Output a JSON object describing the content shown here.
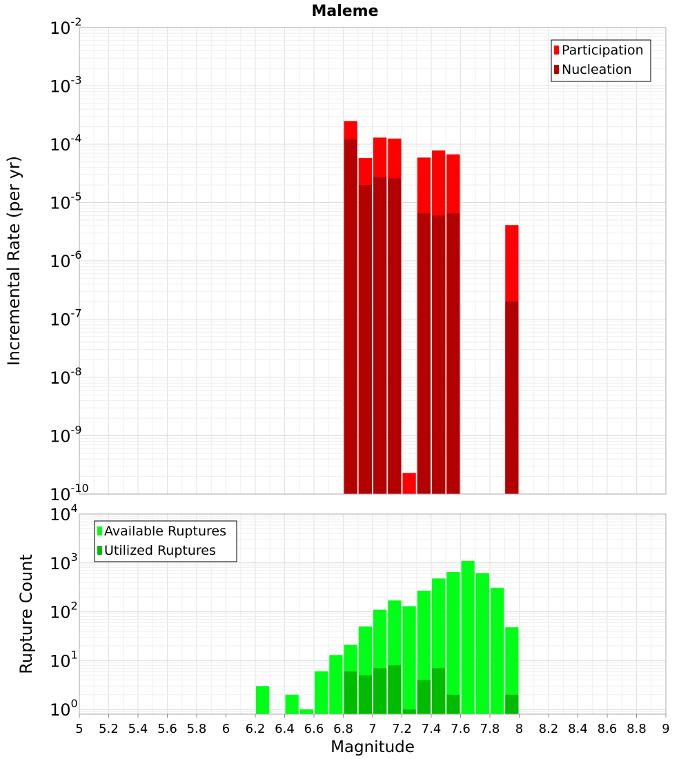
{
  "chart_data": [
    {
      "type": "bar",
      "scale": "log",
      "title": "Maleme",
      "xlabel": "Magnitude",
      "ylabel": "Incremental Rate (per yr)",
      "xlim": [
        5,
        9
      ],
      "ylim": [
        1e-10,
        0.01
      ],
      "bin_width": 0.1,
      "y_ticks": [
        {
          "base": "10",
          "exp": "-10",
          "value": 1e-10
        },
        {
          "base": "10",
          "exp": "-9",
          "value": 1e-09
        },
        {
          "base": "10",
          "exp": "-8",
          "value": 1e-08
        },
        {
          "base": "10",
          "exp": "-7",
          "value": 1e-07
        },
        {
          "base": "10",
          "exp": "-6",
          "value": 1e-06
        },
        {
          "base": "10",
          "exp": "-5",
          "value": 1e-05
        },
        {
          "base": "10",
          "exp": "-4",
          "value": 0.0001
        },
        {
          "base": "10",
          "exp": "-3",
          "value": 0.001
        },
        {
          "base": "10",
          "exp": "-2",
          "value": 0.01
        }
      ],
      "legend": {
        "position": "top-right"
      },
      "series": [
        {
          "name": "Participation",
          "color": "#ff0000",
          "x": [
            6.85,
            6.95,
            7.05,
            7.15,
            7.25,
            7.35,
            7.45,
            7.55,
            7.95
          ],
          "values": [
            0.00025,
            5.8e-05,
            0.00013,
            0.000125,
            2.3e-10,
            5.9e-05,
            7.8e-05,
            6.7e-05,
            4.1e-06
          ]
        },
        {
          "name": "Nucleation",
          "color": "#b30000",
          "x": [
            6.85,
            6.95,
            7.05,
            7.15,
            7.35,
            7.45,
            7.55,
            7.95
          ],
          "values": [
            0.00012,
            2e-05,
            2.7e-05,
            2.6e-05,
            6.5e-06,
            6e-06,
            6.5e-06,
            2e-07
          ]
        }
      ]
    },
    {
      "type": "bar",
      "scale": "log",
      "xlabel": "Magnitude",
      "ylabel": "Rupture Count",
      "xlim": [
        5,
        9
      ],
      "ylim": [
        0.8,
        10000
      ],
      "bin_width": 0.1,
      "x_ticks": [
        "5",
        "5.2",
        "5.4",
        "5.6",
        "5.8",
        "6",
        "6.2",
        "6.4",
        "6.6",
        "6.8",
        "7",
        "7.2",
        "7.4",
        "7.6",
        "7.8",
        "8",
        "8.2",
        "8.4",
        "8.6",
        "8.8",
        "9"
      ],
      "y_ticks": [
        {
          "base": "10",
          "exp": "0",
          "value": 1
        },
        {
          "base": "10",
          "exp": "1",
          "value": 10
        },
        {
          "base": "10",
          "exp": "2",
          "value": 100
        },
        {
          "base": "10",
          "exp": "3",
          "value": 1000
        },
        {
          "base": "10",
          "exp": "4",
          "value": 10000
        }
      ],
      "legend": {
        "position": "top-left"
      },
      "series": [
        {
          "name": "Available Ruptures",
          "color": "#00ff16",
          "x": [
            6.25,
            6.45,
            6.55,
            6.65,
            6.75,
            6.85,
            6.95,
            7.05,
            7.15,
            7.25,
            7.35,
            7.45,
            7.55,
            7.65,
            7.75,
            7.85,
            7.95
          ],
          "values": [
            3,
            2,
            1,
            6,
            13,
            21,
            50,
            110,
            170,
            130,
            270,
            480,
            650,
            1100,
            620,
            310,
            48
          ]
        },
        {
          "name": "Utilized Ruptures",
          "color": "#00bb00",
          "x": [
            6.85,
            6.95,
            7.05,
            7.15,
            7.25,
            7.35,
            7.45,
            7.55,
            7.95
          ],
          "values": [
            6,
            5,
            7,
            8,
            1,
            4,
            7,
            2,
            2
          ]
        }
      ]
    }
  ]
}
